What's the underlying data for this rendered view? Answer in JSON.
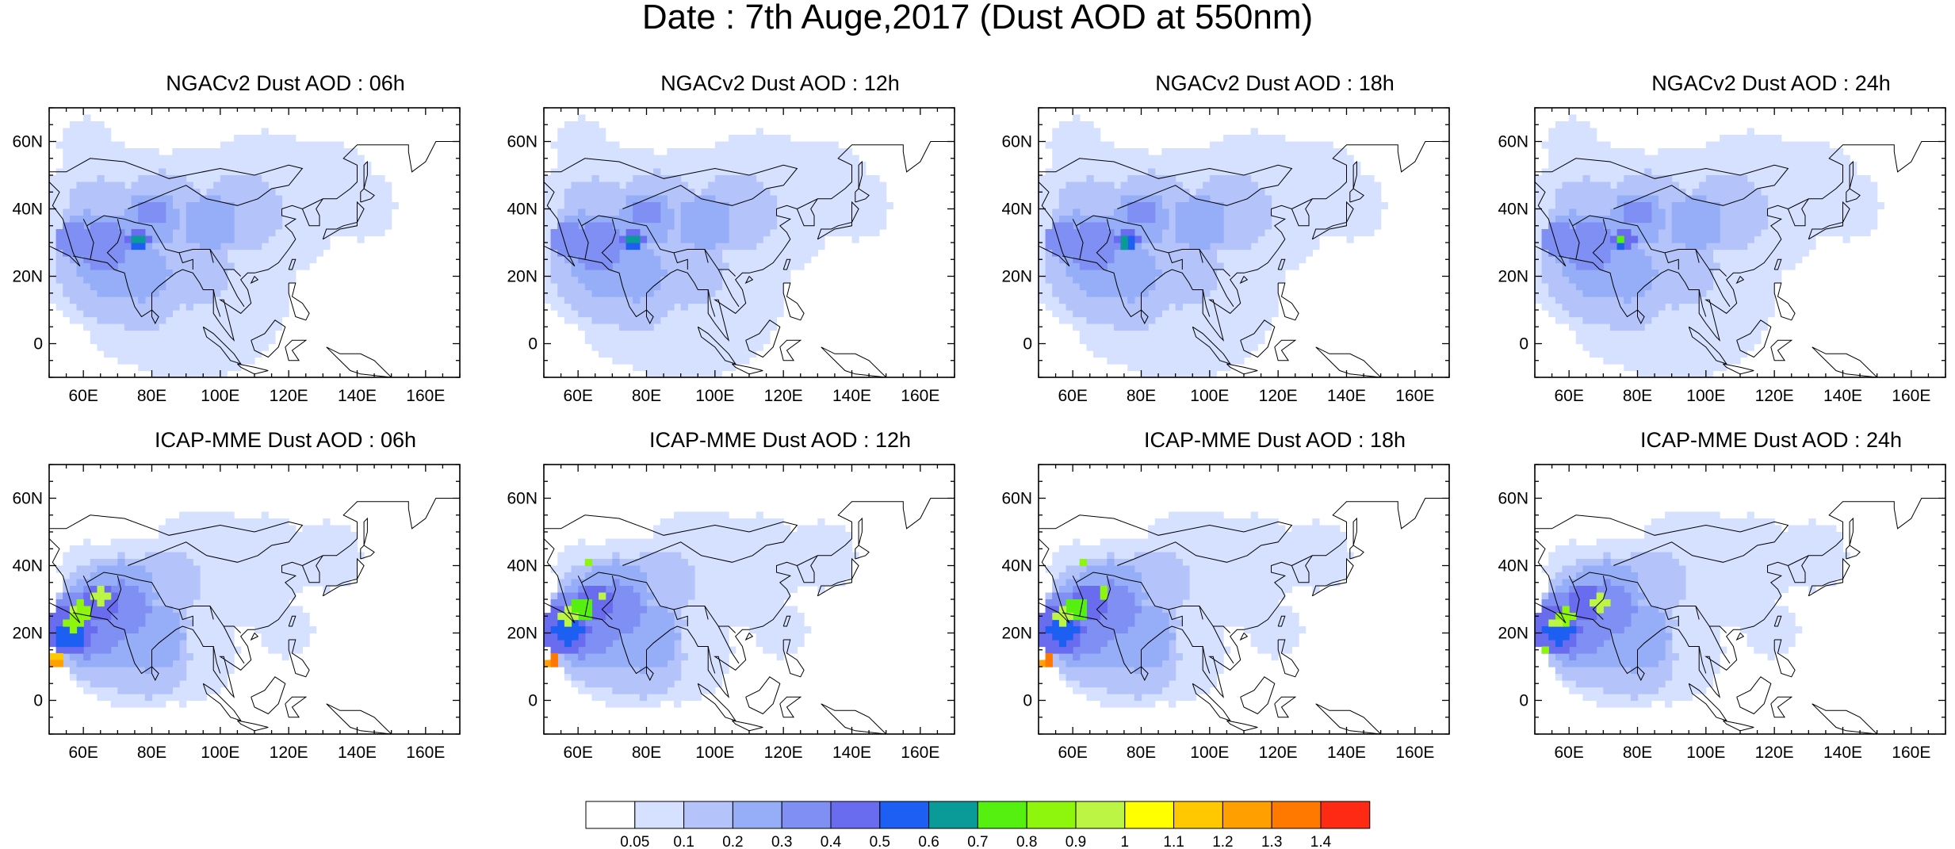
{
  "title": "Date : 7th Auge,2017 (Dust AOD at 550nm)",
  "map": {
    "lon_range": [
      50,
      170
    ],
    "lat_range": [
      -10,
      70
    ],
    "x_ticks": [
      "60E",
      "80E",
      "100E",
      "120E",
      "140E",
      "160E"
    ],
    "y_ticks": [
      "60N",
      "40N",
      "20N",
      "0"
    ]
  },
  "colorbar": {
    "colors": [
      "#ffffff",
      "#d6e0ff",
      "#b4c4fb",
      "#96aef8",
      "#7f8ff3",
      "#6a6cf0",
      "#1c5ff2",
      "#0a9a98",
      "#55f00f",
      "#8ef60c",
      "#bdf545",
      "#ffff00",
      "#ffc800",
      "#ff9f00",
      "#ff7800",
      "#ff2a14"
    ],
    "labels": [
      "0.05",
      "0.1",
      "0.2",
      "0.3",
      "0.4",
      "0.5",
      "0.6",
      "0.7",
      "0.8",
      "0.9",
      "1",
      "1.1",
      "1.2",
      "1.3",
      "1.4"
    ]
  },
  "panels": [
    {
      "title": "NGACv2 Dust AOD : 06h",
      "model": "NGACv2"
    },
    {
      "title": "NGACv2 Dust AOD : 12h",
      "model": "NGACv2"
    },
    {
      "title": "NGACv2 Dust AOD : 18h",
      "model": "NGACv2"
    },
    {
      "title": "NGACv2 Dust AOD : 24h",
      "model": "NGACv2"
    },
    {
      "title": "ICAP-MME Dust AOD : 06h",
      "model": "ICAP"
    },
    {
      "title": "ICAP-MME Dust AOD : 12h",
      "model": "ICAP"
    },
    {
      "title": "ICAP-MME Dust AOD : 18h",
      "model": "ICAP"
    },
    {
      "title": "ICAP-MME Dust AOD : 24h",
      "model": "ICAP"
    }
  ]
}
